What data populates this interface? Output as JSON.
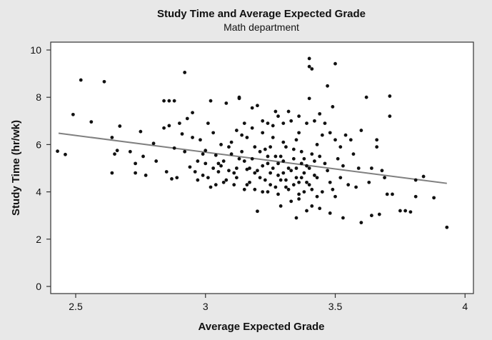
{
  "chart_data": {
    "type": "scatter",
    "title": "Study Time and Average Expected Grade",
    "subtitle": "Math department",
    "xlabel": "Average Expected Grade",
    "ylabel": "Study Time (hr/wk)",
    "xlim": [
      2.4,
      4.03
    ],
    "ylim": [
      -0.3,
      10.3
    ],
    "xticks": [
      "2.5",
      "3",
      "3.5",
      "4"
    ],
    "yticks": [
      "0",
      "2",
      "4",
      "6",
      "8",
      "10"
    ],
    "grid": false,
    "point_color": "#111111",
    "line_color": "#808080",
    "background_color": "#e8e8e8",
    "regression_line": {
      "x": [
        2.434,
        3.93
      ],
      "y": [
        6.48,
        4.36
      ]
    },
    "points": [
      [
        2.43,
        5.72
      ],
      [
        2.46,
        5.58
      ],
      [
        2.49,
        7.27
      ],
      [
        2.52,
        8.73
      ],
      [
        2.56,
        6.96
      ],
      [
        2.61,
        8.66
      ],
      [
        2.64,
        6.3
      ],
      [
        2.64,
        4.8
      ],
      [
        2.65,
        5.6
      ],
      [
        2.66,
        5.75
      ],
      [
        2.67,
        6.78
      ],
      [
        2.71,
        5.7
      ],
      [
        2.73,
        4.8
      ],
      [
        2.73,
        5.2
      ],
      [
        2.75,
        6.55
      ],
      [
        2.76,
        5.5
      ],
      [
        2.77,
        4.7
      ],
      [
        2.8,
        6.05
      ],
      [
        2.81,
        5.3
      ],
      [
        2.84,
        7.85
      ],
      [
        2.86,
        7.85
      ],
      [
        2.85,
        4.85
      ],
      [
        2.84,
        6.7
      ],
      [
        2.86,
        6.8
      ],
      [
        2.88,
        7.85
      ],
      [
        2.88,
        5.85
      ],
      [
        2.87,
        4.55
      ],
      [
        2.89,
        4.6
      ],
      [
        2.9,
        6.9
      ],
      [
        2.91,
        6.45
      ],
      [
        2.92,
        9.05
      ],
      [
        2.93,
        7.1
      ],
      [
        2.92,
        5.7
      ],
      [
        2.94,
        5.05
      ],
      [
        2.95,
        6.3
      ],
      [
        2.95,
        7.35
      ],
      [
        2.96,
        4.85
      ],
      [
        2.97,
        4.5
      ],
      [
        2.98,
        6.2
      ],
      [
        2.99,
        4.7
      ],
      [
        2.97,
        5.3
      ],
      [
        3.0,
        5.75
      ],
      [
        3.01,
        6.9
      ],
      [
        3.02,
        7.85
      ],
      [
        3.02,
        4.2
      ],
      [
        3.03,
        6.5
      ],
      [
        3.04,
        5.55
      ],
      [
        3.05,
        4.85
      ],
      [
        3.06,
        5.1
      ],
      [
        3.07,
        4.4
      ],
      [
        3.08,
        7.75
      ],
      [
        3.09,
        5.9
      ],
      [
        3.1,
        6.1
      ],
      [
        3.11,
        4.3
      ],
      [
        3.12,
        5.0
      ],
      [
        3.13,
        7.95
      ],
      [
        3.13,
        8.0
      ],
      [
        3.14,
        6.4
      ],
      [
        3.15,
        5.3
      ],
      [
        3.15,
        6.9
      ],
      [
        3.16,
        4.3
      ],
      [
        3.17,
        5.0
      ],
      [
        3.18,
        7.55
      ],
      [
        3.19,
        4.8
      ],
      [
        3.2,
        7.65
      ],
      [
        3.21,
        5.7
      ],
      [
        3.22,
        6.5
      ],
      [
        3.23,
        4.5
      ],
      [
        3.24,
        5.2
      ],
      [
        3.24,
        4.0
      ],
      [
        3.25,
        5.9
      ],
      [
        3.26,
        6.8
      ],
      [
        3.27,
        7.4
      ],
      [
        3.28,
        4.7
      ],
      [
        3.29,
        5.5
      ],
      [
        3.3,
        6.1
      ],
      [
        3.31,
        4.2
      ],
      [
        3.32,
        5.0
      ],
      [
        3.33,
        7.0
      ],
      [
        3.34,
        5.8
      ],
      [
        3.35,
        4.6
      ],
      [
        3.36,
        6.5
      ],
      [
        3.37,
        5.2
      ],
      [
        3.38,
        4.0
      ],
      [
        3.39,
        6.9
      ],
      [
        3.2,
        3.18
      ],
      [
        3.29,
        3.4
      ],
      [
        3.35,
        2.9
      ],
      [
        3.33,
        3.6
      ],
      [
        3.36,
        3.7
      ],
      [
        3.05,
        5.2
      ],
      [
        3.07,
        5.3
      ],
      [
        3.09,
        4.9
      ],
      [
        3.1,
        5.6
      ],
      [
        3.12,
        4.6
      ],
      [
        3.14,
        5.7
      ],
      [
        3.16,
        4.95
      ],
      [
        3.18,
        5.4
      ],
      [
        3.19,
        4.1
      ],
      [
        3.21,
        4.6
      ],
      [
        3.22,
        5.1
      ],
      [
        3.23,
        5.8
      ],
      [
        3.25,
        4.3
      ],
      [
        3.26,
        5.0
      ],
      [
        3.27,
        5.5
      ],
      [
        3.28,
        3.9
      ],
      [
        3.29,
        4.5
      ],
      [
        3.3,
        5.3
      ],
      [
        3.31,
        5.9
      ],
      [
        3.32,
        4.1
      ],
      [
        3.33,
        4.9
      ],
      [
        3.34,
        5.4
      ],
      [
        3.35,
        6.2
      ],
      [
        3.36,
        4.4
      ],
      [
        3.37,
        5.7
      ],
      [
        3.38,
        4.8
      ],
      [
        3.39,
        5.1
      ],
      [
        3.4,
        4.3
      ],
      [
        3.41,
        5.6
      ],
      [
        3.42,
        4.7
      ],
      [
        3.4,
        9.64
      ],
      [
        3.4,
        9.3
      ],
      [
        3.41,
        9.2
      ],
      [
        3.5,
        9.42
      ],
      [
        3.47,
        8.48
      ],
      [
        3.4,
        7.95
      ],
      [
        3.49,
        7.6
      ],
      [
        3.44,
        7.3
      ],
      [
        3.42,
        7.0
      ],
      [
        3.46,
        6.9
      ],
      [
        3.45,
        6.4
      ],
      [
        3.48,
        6.5
      ],
      [
        3.5,
        6.2
      ],
      [
        3.52,
        5.9
      ],
      [
        3.43,
        6.0
      ],
      [
        3.44,
        5.5
      ],
      [
        3.46,
        5.2
      ],
      [
        3.47,
        4.9
      ],
      [
        3.48,
        4.4
      ],
      [
        3.45,
        4.0
      ],
      [
        3.43,
        3.8
      ],
      [
        3.49,
        4.1
      ],
      [
        3.5,
        3.8
      ],
      [
        3.51,
        5.4
      ],
      [
        3.52,
        4.6
      ],
      [
        3.53,
        5.1
      ],
      [
        3.54,
        6.4
      ],
      [
        3.55,
        4.3
      ],
      [
        3.56,
        6.2
      ],
      [
        3.57,
        5.6
      ],
      [
        3.58,
        4.2
      ],
      [
        3.59,
        5.0
      ],
      [
        3.6,
        6.6
      ],
      [
        3.62,
        8.0
      ],
      [
        3.63,
        4.4
      ],
      [
        3.64,
        5.0
      ],
      [
        3.66,
        6.2
      ],
      [
        3.66,
        5.9
      ],
      [
        3.68,
        4.9
      ],
      [
        3.69,
        4.6
      ],
      [
        3.71,
        8.05
      ],
      [
        3.71,
        7.2
      ],
      [
        3.7,
        3.9
      ],
      [
        3.72,
        3.9
      ],
      [
        3.81,
        4.5
      ],
      [
        3.84,
        4.65
      ],
      [
        3.81,
        3.8
      ],
      [
        3.88,
        3.75
      ],
      [
        3.93,
        2.5
      ],
      [
        3.75,
        3.2
      ],
      [
        3.77,
        3.2
      ],
      [
        3.79,
        3.15
      ],
      [
        3.6,
        2.7
      ],
      [
        3.64,
        3.0
      ],
      [
        3.67,
        3.05
      ],
      [
        3.53,
        2.9
      ],
      [
        3.48,
        3.1
      ],
      [
        3.39,
        3.2
      ],
      [
        3.41,
        3.4
      ],
      [
        3.44,
        3.3
      ],
      [
        3.3,
        4.8
      ],
      [
        3.31,
        4.5
      ],
      [
        3.28,
        5.2
      ],
      [
        3.27,
        4.2
      ],
      [
        3.25,
        4.8
      ],
      [
        3.24,
        5.5
      ],
      [
        3.22,
        4.0
      ],
      [
        3.2,
        4.9
      ],
      [
        3.19,
        5.9
      ],
      [
        3.17,
        4.4
      ],
      [
        3.15,
        4.1
      ],
      [
        3.13,
        5.4
      ],
      [
        3.11,
        4.8
      ],
      [
        3.08,
        4.5
      ],
      [
        3.06,
        6.0
      ],
      [
        3.04,
        4.3
      ],
      [
        3.03,
        5.0
      ],
      [
        3.01,
        4.6
      ],
      [
        3.0,
        5.2
      ],
      [
        2.99,
        5.6
      ],
      [
        3.34,
        4.3
      ],
      [
        3.35,
        5.0
      ],
      [
        3.36,
        3.9
      ],
      [
        3.37,
        4.6
      ],
      [
        3.38,
        5.4
      ],
      [
        3.39,
        4.4
      ],
      [
        3.4,
        5.0
      ],
      [
        3.41,
        4.1
      ],
      [
        3.42,
        5.3
      ],
      [
        3.43,
        4.6
      ],
      [
        3.36,
        7.2
      ],
      [
        3.32,
        7.4
      ],
      [
        3.3,
        6.9
      ],
      [
        3.28,
        7.2
      ],
      [
        3.26,
        6.3
      ],
      [
        3.24,
        6.9
      ],
      [
        3.22,
        7.0
      ],
      [
        3.18,
        6.7
      ],
      [
        3.16,
        6.3
      ],
      [
        3.12,
        6.6
      ]
    ]
  }
}
